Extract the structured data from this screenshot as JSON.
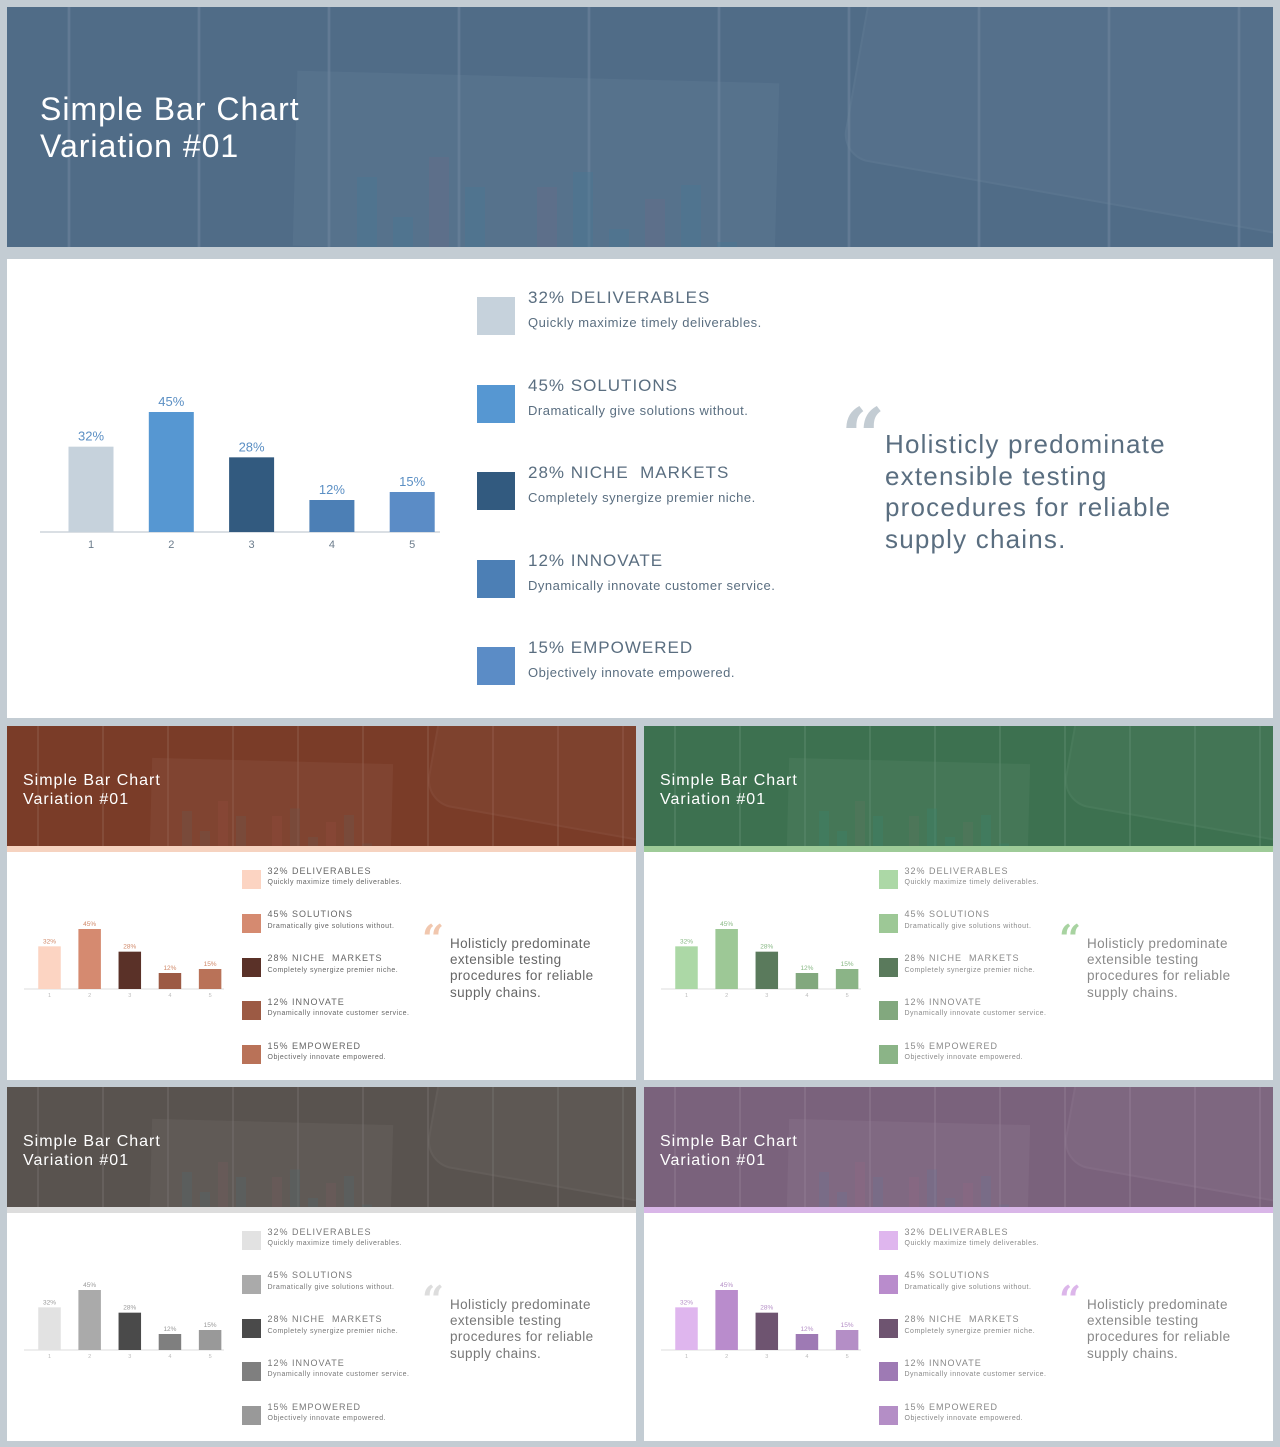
{
  "slides": [
    {
      "key": "main",
      "theme": "blue-grey",
      "title": "Simple Bar Chart\nVariation #01",
      "banner_tint": "#4d6a88",
      "wood_color": "#5f7688",
      "separator_color": "#c3ccd3",
      "text_color": "#5a6e80",
      "axis_color": "#c3ccd3",
      "bar_label_color": "#5b8fc4",
      "quote_mark_color": "#c3ccd3",
      "quote": "Holisticly predominate extensible testing procedures for reliable supply chains.",
      "chart_data": {
        "type": "bar",
        "categories": [
          "1",
          "2",
          "3",
          "4",
          "5"
        ],
        "values": [
          32,
          45,
          28,
          12,
          15
        ],
        "data_labels": [
          "32%",
          "45%",
          "28%",
          "12%",
          "15%"
        ],
        "colors": [
          "#c6d2dc",
          "#5697d2",
          "#325a7f",
          "#4c7fb5",
          "#5b8cc6"
        ],
        "ylim": [
          0,
          50
        ]
      },
      "legend": [
        {
          "pct": "32%",
          "label": "DELIVERABLES",
          "desc": "Quickly maximize timely deliverables."
        },
        {
          "pct": "45%",
          "label": "SOLUTIONS",
          "desc": "Dramatically give solutions without."
        },
        {
          "pct": "28%",
          "label": "NICHE  MARKETS",
          "desc": "Completely synergize premier niche."
        },
        {
          "pct": "12%",
          "label": "INNOVATE",
          "desc": "Dynamically innovate customer service."
        },
        {
          "pct": "15%",
          "label": "EMPOWERED",
          "desc": "Objectively innovate empowered."
        }
      ]
    },
    {
      "key": "orange",
      "theme": "terracotta",
      "title": "Simple Bar Chart\nVariation #01",
      "banner_tint": "#7e3d28",
      "wood_color": "#6a3a2a",
      "separator_color": "#f6d3c0",
      "text_color": "#666666",
      "axis_color": "#dddddd",
      "bar_label_color": "#d08868",
      "quote_mark_color": "#f1c7ae",
      "quote": "Holisticly predominate extensible testing procedures for reliable supply chains.",
      "chart_data": {
        "type": "bar",
        "categories": [
          "1",
          "2",
          "3",
          "4",
          "5"
        ],
        "values": [
          32,
          45,
          28,
          12,
          15
        ],
        "data_labels": [
          "32%",
          "45%",
          "28%",
          "12%",
          "15%"
        ],
        "colors": [
          "#fcd4c2",
          "#d58a70",
          "#5a3128",
          "#9c5a44",
          "#b97258"
        ],
        "ylim": [
          0,
          50
        ]
      },
      "legend": [
        {
          "pct": "32%",
          "label": "DELIVERABLES",
          "desc": "Quickly maximize timely deliverables."
        },
        {
          "pct": "45%",
          "label": "SOLUTIONS",
          "desc": "Dramatically give solutions without."
        },
        {
          "pct": "28%",
          "label": "NICHE  MARKETS",
          "desc": "Completely synergize premier niche."
        },
        {
          "pct": "12%",
          "label": "INNOVATE",
          "desc": "Dynamically innovate customer service."
        },
        {
          "pct": "15%",
          "label": "EMPOWERED",
          "desc": "Objectively innovate empowered."
        }
      ]
    },
    {
      "key": "green",
      "theme": "green",
      "title": "Simple Bar Chart\nVariation #01",
      "banner_tint": "#3d7552",
      "wood_color": "#3e5e48",
      "separator_color": "#9ecb98",
      "text_color": "#8a8a8a",
      "axis_color": "#dddddd",
      "bar_label_color": "#88b884",
      "quote_mark_color": "#a8d3a1",
      "quote": "Holisticly predominate extensible testing procedures for reliable supply chains.",
      "chart_data": {
        "type": "bar",
        "categories": [
          "1",
          "2",
          "3",
          "4",
          "5"
        ],
        "values": [
          32,
          45,
          28,
          12,
          15
        ],
        "data_labels": [
          "32%",
          "45%",
          "28%",
          "12%",
          "15%"
        ],
        "colors": [
          "#acd8a6",
          "#9dc896",
          "#5a7a5c",
          "#82a87e",
          "#8bb487"
        ],
        "ylim": [
          0,
          50
        ]
      },
      "legend": [
        {
          "pct": "32%",
          "label": "DELIVERABLES",
          "desc": "Quickly maximize timely deliverables."
        },
        {
          "pct": "45%",
          "label": "SOLUTIONS",
          "desc": "Dramatically give solutions without."
        },
        {
          "pct": "28%",
          "label": "NICHE  MARKETS",
          "desc": "Completely synergize premier niche."
        },
        {
          "pct": "12%",
          "label": "INNOVATE",
          "desc": "Dynamically innovate customer service."
        },
        {
          "pct": "15%",
          "label": "EMPOWERED",
          "desc": "Objectively innovate empowered."
        }
      ]
    },
    {
      "key": "grey",
      "theme": "grey",
      "title": "Simple Bar Chart\nVariation #01",
      "banner_tint": "#5a5450",
      "wood_color": "#55504b",
      "separator_color": "#dddddd",
      "text_color": "#777777",
      "axis_color": "#dddddd",
      "bar_label_color": "#999999",
      "quote_mark_color": "#dddddd",
      "quote": "Holisticly predominate extensible testing procedures for reliable supply chains.",
      "chart_data": {
        "type": "bar",
        "categories": [
          "1",
          "2",
          "3",
          "4",
          "5"
        ],
        "values": [
          32,
          45,
          28,
          12,
          15
        ],
        "data_labels": [
          "32%",
          "45%",
          "28%",
          "12%",
          "15%"
        ],
        "colors": [
          "#e2e2e2",
          "#aaaaaa",
          "#4a4a4a",
          "#7f7f7f",
          "#999999"
        ],
        "ylim": [
          0,
          50
        ]
      },
      "legend": [
        {
          "pct": "32%",
          "label": "DELIVERABLES",
          "desc": "Quickly maximize timely deliverables."
        },
        {
          "pct": "45%",
          "label": "SOLUTIONS",
          "desc": "Dramatically give solutions without."
        },
        {
          "pct": "28%",
          "label": "NICHE  MARKETS",
          "desc": "Completely synergize premier niche."
        },
        {
          "pct": "12%",
          "label": "INNOVATE",
          "desc": "Dynamically innovate customer service."
        },
        {
          "pct": "15%",
          "label": "EMPOWERED",
          "desc": "Objectively innovate empowered."
        }
      ]
    },
    {
      "key": "purple",
      "theme": "purple",
      "title": "Simple Bar Chart\nVariation #01",
      "banner_tint": "#7e6480",
      "wood_color": "#6b5a68",
      "separator_color": "#d9b6e8",
      "text_color": "#888888",
      "axis_color": "#dddddd",
      "bar_label_color": "#b48ec6",
      "quote_mark_color": "#dcb6ea",
      "quote": "Holisticly predominate extensible testing procedures for reliable supply chains.",
      "chart_data": {
        "type": "bar",
        "categories": [
          "1",
          "2",
          "3",
          "4",
          "5"
        ],
        "values": [
          32,
          45,
          28,
          12,
          15
        ],
        "data_labels": [
          "32%",
          "45%",
          "28%",
          "12%",
          "15%"
        ],
        "colors": [
          "#dfb6ee",
          "#b98ccc",
          "#6e5470",
          "#9e7ab4",
          "#b48ec6"
        ],
        "ylim": [
          0,
          50
        ]
      },
      "legend": [
        {
          "pct": "32%",
          "label": "DELIVERABLES",
          "desc": "Quickly maximize timely deliverables."
        },
        {
          "pct": "45%",
          "label": "SOLUTIONS",
          "desc": "Dramatically give solutions without."
        },
        {
          "pct": "28%",
          "label": "NICHE  MARKETS",
          "desc": "Completely synergize premier niche."
        },
        {
          "pct": "12%",
          "label": "INNOVATE",
          "desc": "Dynamically innovate customer service."
        },
        {
          "pct": "15%",
          "label": "EMPOWERED",
          "desc": "Objectively innovate empowered."
        }
      ]
    }
  ]
}
